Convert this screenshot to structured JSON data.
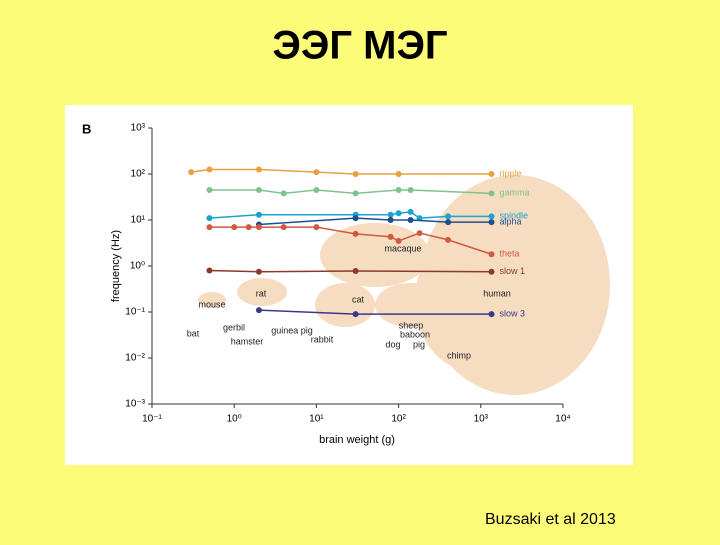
{
  "title": "ЭЭГ МЭГ",
  "caption": "Buzsaki et al 2013",
  "chart_data": {
    "type": "line",
    "panel_label": "B",
    "x_label": "brain weight (g)",
    "y_label": "frequency (Hz)",
    "log_x": true,
    "log_y": true,
    "xlim": [
      0.1,
      10000
    ],
    "ylim": [
      0.001,
      1000
    ],
    "xticks": [
      {
        "value": 0.1,
        "label": "10⁻¹"
      },
      {
        "value": 1,
        "label": "10⁰"
      },
      {
        "value": 10,
        "label": "10¹"
      },
      {
        "value": 100,
        "label": "10²"
      },
      {
        "value": 1000,
        "label": "10³"
      },
      {
        "value": 10000,
        "label": "10⁴"
      }
    ],
    "yticks": [
      {
        "value": 0.001,
        "label": "10⁻³"
      },
      {
        "value": 0.01,
        "label": "10⁻²"
      },
      {
        "value": 0.1,
        "label": "10⁻¹"
      },
      {
        "value": 1,
        "label": "10⁰"
      },
      {
        "value": 10,
        "label": "10¹"
      },
      {
        "value": 100,
        "label": "10²"
      },
      {
        "value": 1000,
        "label": "10³"
      }
    ],
    "series": [
      {
        "name": "ripple",
        "color": "#e8a040",
        "x": [
          0.3,
          0.5,
          2,
          10,
          30,
          100,
          1350
        ],
        "values": [
          110,
          125,
          125,
          110,
          100,
          100,
          100
        ]
      },
      {
        "name": "gamma",
        "color": "#80c28e",
        "x": [
          0.5,
          2,
          4,
          10,
          30,
          100,
          140,
          1350
        ],
        "values": [
          45,
          45,
          38,
          45,
          38,
          45,
          45,
          38
        ]
      },
      {
        "name": "spindle",
        "color": "#1aa3cf",
        "x": [
          0.5,
          2,
          30,
          80,
          100,
          140,
          180,
          400,
          1350
        ],
        "values": [
          11,
          13,
          13,
          13,
          14,
          15,
          11,
          12,
          12
        ]
      },
      {
        "name": "alpha",
        "color": "#1f4e8c",
        "x": [
          2,
          30,
          80,
          140,
          400,
          1350
        ],
        "values": [
          8,
          11,
          10,
          10,
          9,
          9
        ]
      },
      {
        "name": "theta",
        "color": "#d05a40",
        "x": [
          0.5,
          1,
          1.5,
          2,
          4,
          10,
          30,
          80,
          100,
          180,
          400,
          1350
        ],
        "values": [
          7,
          7,
          7,
          7,
          7,
          7,
          5,
          4.3,
          3.5,
          5.2,
          3.7,
          1.8
        ]
      },
      {
        "name": "slow 1",
        "color": "#8b3a2a",
        "x": [
          0.5,
          2,
          30,
          1350
        ],
        "values": [
          0.8,
          0.75,
          0.78,
          0.75
        ]
      },
      {
        "name": "slow 3",
        "color": "#3a3a8a",
        "x": [
          2,
          30,
          1350
        ],
        "values": [
          0.11,
          0.09,
          0.09
        ]
      }
    ],
    "annotations": [
      "mouse",
      "rat",
      "bat",
      "gerbil",
      "hamster",
      "guinea pig",
      "rabbit",
      "cat",
      "macaque",
      "sheep",
      "baboon",
      "dog",
      "pig",
      "chimp",
      "human"
    ]
  }
}
